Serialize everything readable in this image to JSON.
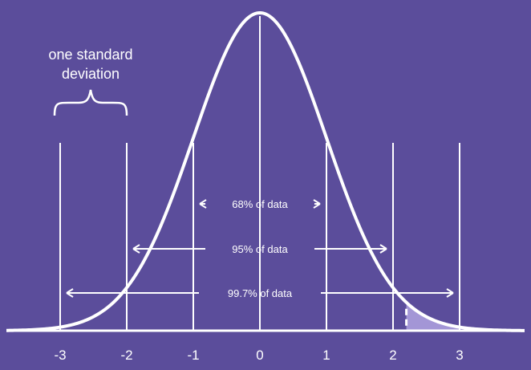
{
  "annotation": {
    "line1": "one standard",
    "line2": "deviation"
  },
  "bands": [
    {
      "label": "68% of data",
      "from": -1,
      "to": 1
    },
    {
      "label": "95% of data",
      "from": -2,
      "to": 2
    },
    {
      "label": "99.7% of data",
      "from": -3,
      "to": 3
    }
  ],
  "ticks": [
    "-3",
    "-2",
    "-1",
    "0",
    "1",
    "2",
    "3"
  ],
  "shaded_tail": {
    "from": 2.2,
    "to": 3
  },
  "colors": {
    "background": "#5b4d9b",
    "line": "#ffffff",
    "shade": "#a396d6"
  }
}
